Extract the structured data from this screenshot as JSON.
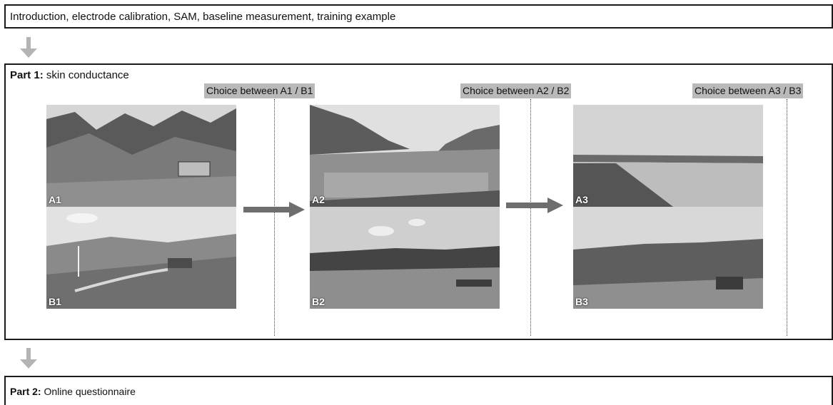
{
  "intro": {
    "text": "Introduction, electrode calibration, SAM, baseline measurement, training example"
  },
  "part1": {
    "title_bold": "Part 1:",
    "title_rest": " skin conductance",
    "choices": [
      "Choice between A1 / B1",
      "Choice between A2 / B2",
      "Choice between A3 / B3"
    ],
    "pairs": [
      {
        "top_label": "A1",
        "bottom_label": "B1"
      },
      {
        "top_label": "A2",
        "bottom_label": "B2"
      },
      {
        "top_label": "A3",
        "bottom_label": "B3"
      }
    ]
  },
  "part2": {
    "title_bold": "Part 2:",
    "title_rest": " Online questionnaire"
  },
  "colors": {
    "arrow_light": "#b4b4b4",
    "arrow_dark": "#6e6e6e",
    "label_bg": "#b9b9b9",
    "border": "#1a1a1a"
  },
  "icons": {
    "down_arrow": "down-arrow-icon",
    "right_arrow": "right-arrow-icon"
  }
}
